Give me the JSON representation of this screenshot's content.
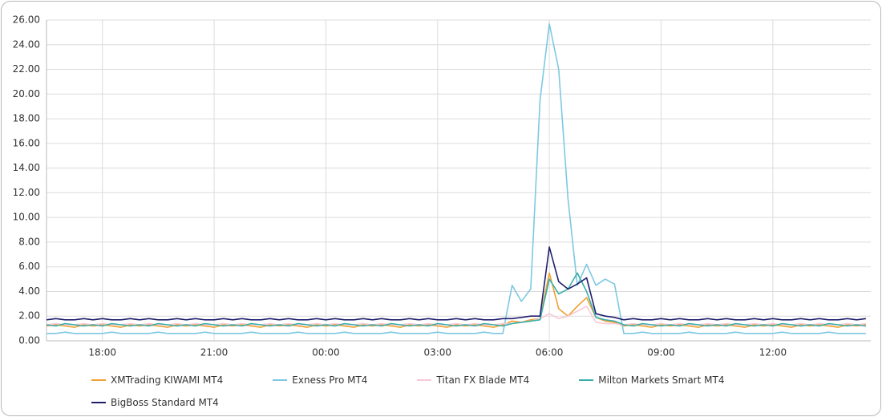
{
  "chart_data": {
    "type": "line",
    "categories": [
      null,
      null,
      null,
      null,
      null,
      null,
      "18:00",
      null,
      null,
      null,
      null,
      null,
      null,
      null,
      null,
      null,
      null,
      null,
      "21:00",
      null,
      null,
      null,
      null,
      null,
      null,
      null,
      null,
      null,
      null,
      null,
      "00:00",
      null,
      null,
      null,
      null,
      null,
      null,
      null,
      null,
      null,
      null,
      null,
      "03:00",
      null,
      null,
      null,
      null,
      null,
      null,
      null,
      null,
      null,
      null,
      null,
      "06:00",
      null,
      null,
      null,
      null,
      null,
      null,
      null,
      null,
      null,
      null,
      null,
      "09:00",
      null,
      null,
      null,
      null,
      null,
      null,
      null,
      null,
      null,
      null,
      null,
      "12:00",
      null,
      null,
      null,
      null,
      null,
      null,
      null,
      null,
      null,
      null
    ],
    "series": [
      {
        "name": "XMTrading KIWAMI MT4",
        "color": "#f0a030",
        "values": [
          1.2,
          1.3,
          1.2,
          1.1,
          1.3,
          1.2,
          1.3,
          1.2,
          1.1,
          1.3,
          1.2,
          1.3,
          1.2,
          1.1,
          1.3,
          1.2,
          1.3,
          1.2,
          1.1,
          1.3,
          1.2,
          1.3,
          1.2,
          1.1,
          1.3,
          1.2,
          1.3,
          1.2,
          1.1,
          1.3,
          1.2,
          1.3,
          1.2,
          1.1,
          1.3,
          1.2,
          1.3,
          1.2,
          1.1,
          1.3,
          1.2,
          1.3,
          1.2,
          1.1,
          1.3,
          1.2,
          1.3,
          1.2,
          1.1,
          1.3,
          1.6,
          1.5,
          1.7,
          1.8,
          5.5,
          2.6,
          2.0,
          2.8,
          3.5,
          1.9,
          1.6,
          1.5,
          1.2,
          1.3,
          1.2,
          1.1,
          1.3,
          1.2,
          1.3,
          1.2,
          1.1,
          1.3,
          1.2,
          1.3,
          1.2,
          1.1,
          1.3,
          1.2,
          1.3,
          1.2,
          1.1,
          1.3,
          1.2,
          1.3,
          1.2,
          1.1,
          1.3,
          1.2,
          1.3
        ]
      },
      {
        "name": "Exness Pro MT4",
        "color": "#7ec8e3",
        "values": [
          0.6,
          0.6,
          0.7,
          0.6,
          0.6,
          0.6,
          0.6,
          0.7,
          0.6,
          0.6,
          0.6,
          0.6,
          0.7,
          0.6,
          0.6,
          0.6,
          0.6,
          0.7,
          0.6,
          0.6,
          0.6,
          0.6,
          0.7,
          0.6,
          0.6,
          0.6,
          0.6,
          0.7,
          0.6,
          0.6,
          0.6,
          0.6,
          0.7,
          0.6,
          0.6,
          0.6,
          0.6,
          0.7,
          0.6,
          0.6,
          0.6,
          0.6,
          0.7,
          0.6,
          0.6,
          0.6,
          0.6,
          0.7,
          0.6,
          0.6,
          4.5,
          3.2,
          4.2,
          19.5,
          25.7,
          22.0,
          11.5,
          4.5,
          6.2,
          4.5,
          5.0,
          4.6,
          0.6,
          0.6,
          0.7,
          0.6,
          0.6,
          0.6,
          0.6,
          0.7,
          0.6,
          0.6,
          0.6,
          0.6,
          0.7,
          0.6,
          0.6,
          0.6,
          0.6,
          0.7,
          0.6,
          0.6,
          0.6,
          0.6,
          0.7,
          0.6,
          0.6,
          0.6,
          0.6
        ]
      },
      {
        "name": "Titan FX Blade MT4",
        "color": "#f8c8d8",
        "values": [
          1.3,
          1.4,
          1.3,
          1.3,
          1.4,
          1.3,
          1.4,
          1.3,
          1.3,
          1.4,
          1.3,
          1.4,
          1.3,
          1.3,
          1.4,
          1.3,
          1.4,
          1.3,
          1.3,
          1.4,
          1.3,
          1.4,
          1.3,
          1.3,
          1.4,
          1.3,
          1.4,
          1.3,
          1.3,
          1.4,
          1.3,
          1.4,
          1.3,
          1.3,
          1.4,
          1.3,
          1.4,
          1.3,
          1.3,
          1.4,
          1.3,
          1.4,
          1.3,
          1.3,
          1.4,
          1.3,
          1.4,
          1.3,
          1.3,
          1.4,
          1.4,
          1.5,
          1.6,
          1.8,
          2.2,
          1.8,
          2.0,
          2.4,
          2.8,
          1.5,
          1.4,
          1.4,
          1.3,
          1.4,
          1.3,
          1.3,
          1.4,
          1.3,
          1.4,
          1.3,
          1.3,
          1.4,
          1.3,
          1.4,
          1.3,
          1.3,
          1.4,
          1.3,
          1.4,
          1.3,
          1.3,
          1.4,
          1.3,
          1.4,
          1.3,
          1.3,
          1.4,
          1.3,
          1.4
        ]
      },
      {
        "name": "Milton Markets Smart MT4",
        "color": "#3aafa9",
        "values": [
          1.3,
          1.2,
          1.4,
          1.3,
          1.2,
          1.3,
          1.2,
          1.4,
          1.3,
          1.2,
          1.3,
          1.2,
          1.4,
          1.3,
          1.2,
          1.3,
          1.2,
          1.4,
          1.3,
          1.2,
          1.3,
          1.2,
          1.4,
          1.3,
          1.2,
          1.3,
          1.2,
          1.4,
          1.3,
          1.2,
          1.3,
          1.2,
          1.4,
          1.3,
          1.2,
          1.3,
          1.2,
          1.4,
          1.3,
          1.2,
          1.3,
          1.2,
          1.4,
          1.3,
          1.2,
          1.3,
          1.2,
          1.4,
          1.3,
          1.2,
          1.4,
          1.5,
          1.6,
          1.7,
          5.0,
          3.8,
          4.2,
          5.5,
          4.0,
          1.9,
          1.7,
          1.6,
          1.3,
          1.2,
          1.4,
          1.3,
          1.2,
          1.3,
          1.2,
          1.4,
          1.3,
          1.2,
          1.3,
          1.2,
          1.4,
          1.3,
          1.2,
          1.3,
          1.2,
          1.4,
          1.3,
          1.2,
          1.3,
          1.2,
          1.4,
          1.3,
          1.2,
          1.3,
          1.2
        ]
      },
      {
        "name": "BigBoss Standard MT4",
        "color": "#1f1f6e",
        "values": [
          1.7,
          1.8,
          1.7,
          1.7,
          1.8,
          1.7,
          1.8,
          1.7,
          1.7,
          1.8,
          1.7,
          1.8,
          1.7,
          1.7,
          1.8,
          1.7,
          1.8,
          1.7,
          1.7,
          1.8,
          1.7,
          1.8,
          1.7,
          1.7,
          1.8,
          1.7,
          1.8,
          1.7,
          1.7,
          1.8,
          1.7,
          1.8,
          1.7,
          1.7,
          1.8,
          1.7,
          1.8,
          1.7,
          1.7,
          1.8,
          1.7,
          1.8,
          1.7,
          1.7,
          1.8,
          1.7,
          1.8,
          1.7,
          1.7,
          1.8,
          1.8,
          1.9,
          2.0,
          2.0,
          7.6,
          4.8,
          4.2,
          4.6,
          5.1,
          2.2,
          2.0,
          1.9,
          1.7,
          1.8,
          1.7,
          1.7,
          1.8,
          1.7,
          1.8,
          1.7,
          1.7,
          1.8,
          1.7,
          1.8,
          1.7,
          1.7,
          1.8,
          1.7,
          1.8,
          1.7,
          1.7,
          1.8,
          1.7,
          1.8,
          1.7,
          1.7,
          1.8,
          1.7,
          1.8
        ]
      }
    ],
    "ylim": [
      0,
      26
    ],
    "yticks": [
      {
        "value": 0,
        "label": "0.00"
      },
      {
        "value": 2,
        "label": "2.00"
      },
      {
        "value": 4,
        "label": "4.00"
      },
      {
        "value": 6,
        "label": "6.00"
      },
      {
        "value": 8,
        "label": "8.00"
      },
      {
        "value": 10,
        "label": "10.00"
      },
      {
        "value": 12,
        "label": "12.00"
      },
      {
        "value": 14,
        "label": "14.00"
      },
      {
        "value": 16,
        "label": "16.00"
      },
      {
        "value": 18,
        "label": "18.00"
      },
      {
        "value": 20,
        "label": "20.00"
      },
      {
        "value": 22,
        "label": "22.00"
      },
      {
        "value": 24,
        "label": "24.00"
      },
      {
        "value": 26,
        "label": "26.00"
      }
    ],
    "grid": true
  }
}
